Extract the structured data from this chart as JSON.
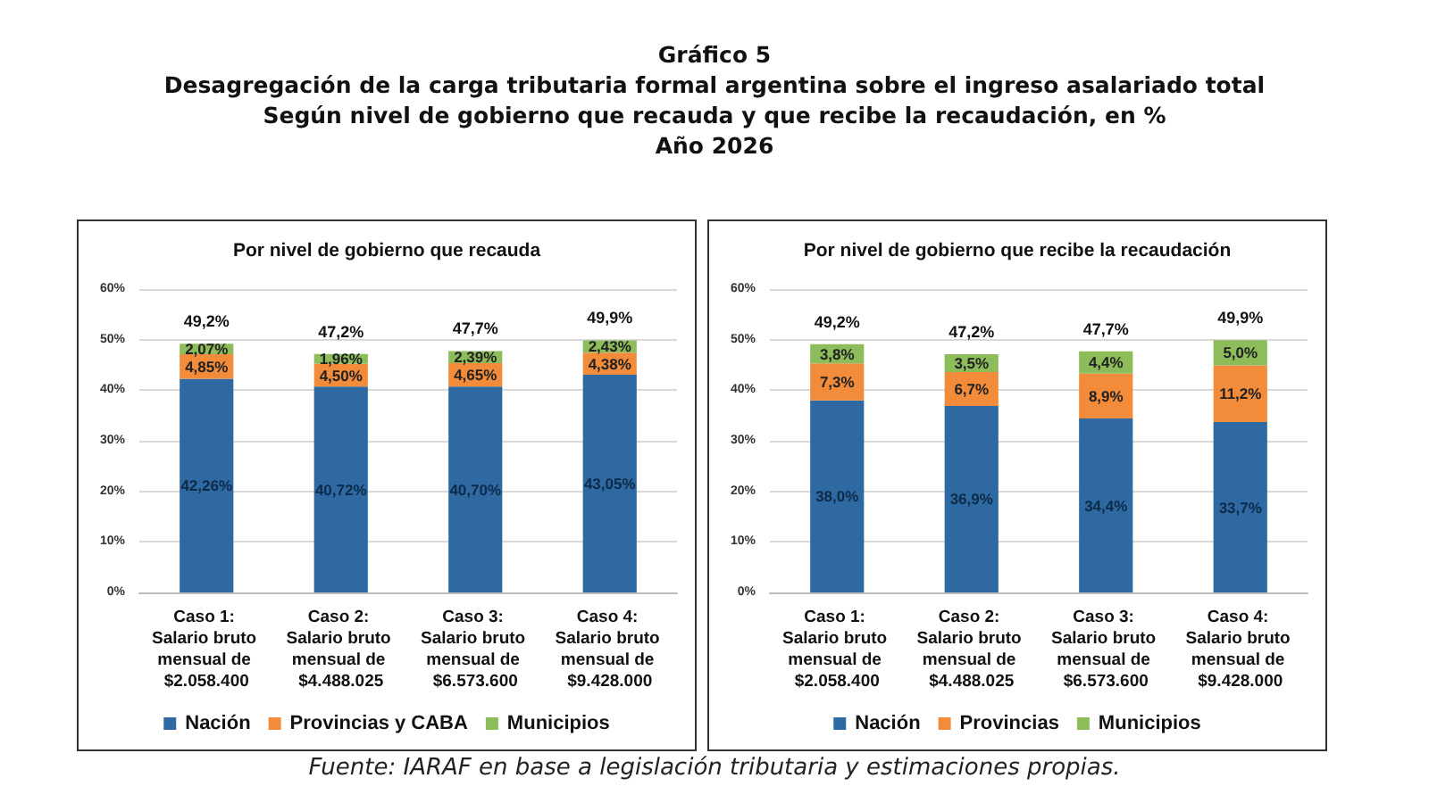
{
  "chart_data": [
    {
      "type": "bar",
      "stacked": true,
      "title": "Por nivel de gobierno que recauda",
      "annotations": [
        "Gráfico 5",
        "Desagregación de la carga tributaria formal argentina sobre el ingreso asalariado total",
        "Según nivel de gobierno que recauda y que recibe la recaudación, en %",
        "Año 2026"
      ],
      "categories": [
        "Caso 1: Salario bruto mensual de $2.058.400",
        "Caso 2: Salario bruto mensual de $4.488.025",
        "Caso 3: Salario bruto mensual de $6.573.600",
        "Caso 4: Salario bruto mensual de $9.428.000"
      ],
      "series": [
        {
          "name": "Nación",
          "color": "#2e6aa1",
          "values": [
            42.26,
            40.72,
            40.7,
            43.05
          ],
          "value_labels": [
            "42,26%",
            "40,72%",
            "40,70%",
            "43,05%"
          ]
        },
        {
          "name": "Provincias y CABA",
          "color": "#f28c3a",
          "values": [
            4.85,
            4.5,
            4.65,
            4.38
          ],
          "value_labels": [
            "4,85%",
            "4,50%",
            "4,65%",
            "4,38%"
          ]
        },
        {
          "name": "Municipios",
          "color": "#8dbd5b",
          "values": [
            2.07,
            1.96,
            2.39,
            2.43
          ],
          "value_labels": [
            "2,07%",
            "1,96%",
            "2,39%",
            "2,43%"
          ]
        }
      ],
      "totals": [
        "49,2%",
        "47,2%",
        "47,7%",
        "49,9%"
      ],
      "ylim": [
        0,
        60
      ],
      "yticks": [
        {
          "value": 0,
          "label": "0%"
        },
        {
          "value": 10,
          "label": "10%"
        },
        {
          "value": 20,
          "label": "20%"
        },
        {
          "value": 30,
          "label": "30%"
        },
        {
          "value": 40,
          "label": "40%"
        },
        {
          "value": 50,
          "label": "50%"
        },
        {
          "value": 60,
          "label": "60%"
        }
      ],
      "grid": "y",
      "legend": "bottom"
    },
    {
      "type": "bar",
      "stacked": true,
      "title": "Por nivel de gobierno que recibe la recaudación",
      "annotations": [
        "Fuente: IARAF en base a legislación tributaria y estimaciones propias."
      ],
      "categories": [
        "Caso 1: Salario bruto mensual de $2.058.400",
        "Caso 2: Salario bruto mensual de $4.488.025",
        "Caso 3: Salario bruto mensual de $6.573.600",
        "Caso 4: Salario bruto mensual de $9.428.000"
      ],
      "series": [
        {
          "name": "Nación",
          "color": "#2e6aa1",
          "values": [
            38.0,
            36.9,
            34.4,
            33.7
          ],
          "value_labels": [
            "38,0%",
            "36,9%",
            "34,4%",
            "33,7%"
          ]
        },
        {
          "name": "Provincias",
          "color": "#f28c3a",
          "values": [
            7.3,
            6.7,
            8.9,
            11.2
          ],
          "value_labels": [
            "7,3%",
            "6,7%",
            "8,9%",
            "11,2%"
          ]
        },
        {
          "name": "Municipios",
          "color": "#8dbd5b",
          "values": [
            3.8,
            3.5,
            4.4,
            5.0
          ],
          "value_labels": [
            "3,8%",
            "3,5%",
            "4,4%",
            "5,0%"
          ]
        }
      ],
      "totals": [
        "49,2%",
        "47,2%",
        "47,7%",
        "49,9%"
      ],
      "ylim": [
        0,
        60
      ],
      "yticks": [
        {
          "value": 0,
          "label": "0%"
        },
        {
          "value": 10,
          "label": "10%"
        },
        {
          "value": 20,
          "label": "20%"
        },
        {
          "value": 30,
          "label": "30%"
        },
        {
          "value": 40,
          "label": "40%"
        },
        {
          "value": 50,
          "label": "50%"
        },
        {
          "value": 60,
          "label": "60%"
        }
      ],
      "grid": "y",
      "legend": "bottom"
    }
  ]
}
